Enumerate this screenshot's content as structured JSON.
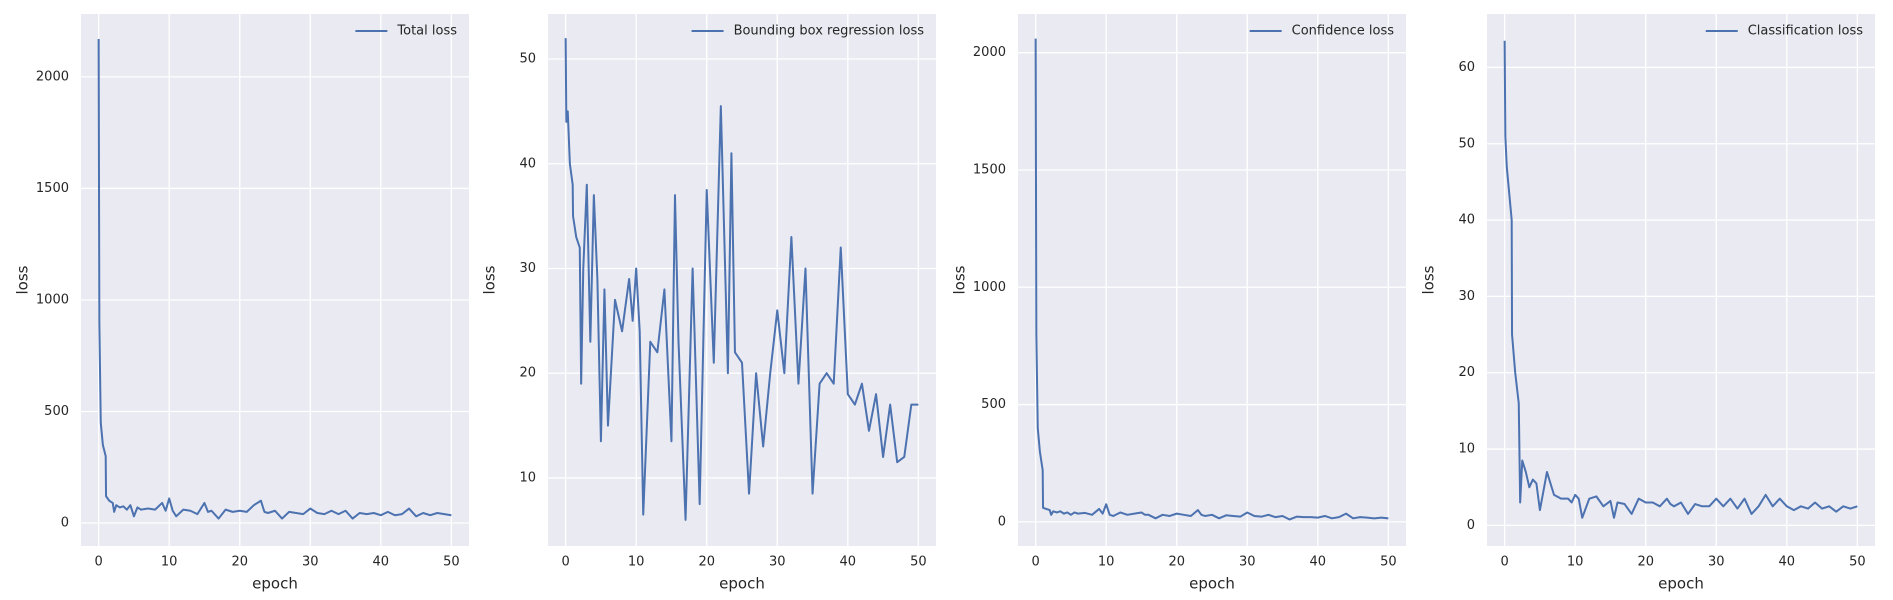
{
  "chart_data": [
    {
      "type": "line",
      "xlabel": "epoch",
      "ylabel": "loss",
      "legend": "upper right",
      "grid": true,
      "xlim": [
        -2.5,
        52.5
      ],
      "ylim": [
        -103,
        2282
      ],
      "xticks": [
        0,
        10,
        20,
        30,
        40,
        50
      ],
      "yticks": [
        0,
        500,
        1000,
        1500,
        2000
      ],
      "x": [
        0,
        0.1,
        0.3,
        0.6,
        1,
        1.05,
        1.5,
        2,
        2.2,
        2.5,
        3,
        3.5,
        4,
        4.5,
        5,
        5.5,
        6,
        7,
        8,
        9,
        9.5,
        10,
        10.5,
        11,
        12,
        13,
        14,
        15,
        15.5,
        16,
        17,
        18,
        19,
        20,
        21,
        22,
        23,
        23.5,
        24,
        25,
        26,
        27,
        28,
        29,
        30,
        31,
        32,
        33,
        34,
        35,
        36,
        37,
        38,
        39,
        40,
        41,
        42,
        43,
        44,
        45,
        46,
        47,
        48,
        49,
        50
      ],
      "series": [
        {
          "name": "Total loss",
          "color": "#4c72b0",
          "values": [
            2170,
            900,
            450,
            350,
            300,
            120,
            100,
            90,
            50,
            80,
            70,
            75,
            60,
            80,
            30,
            70,
            60,
            65,
            60,
            90,
            55,
            110,
            55,
            30,
            60,
            55,
            40,
            90,
            50,
            55,
            20,
            60,
            50,
            55,
            50,
            80,
            100,
            50,
            45,
            55,
            20,
            50,
            45,
            40,
            65,
            45,
            40,
            55,
            40,
            55,
            20,
            45,
            40,
            45,
            35,
            50,
            35,
            40,
            65,
            30,
            45,
            35,
            45,
            40,
            35
          ]
        }
      ]
    },
    {
      "type": "line",
      "xlabel": "epoch",
      "ylabel": "loss",
      "legend": "upper right",
      "grid": true,
      "xlim": [
        -2.5,
        52.5
      ],
      "ylim": [
        3.5,
        54.3
      ],
      "xticks": [
        0,
        10,
        20,
        30,
        40,
        50
      ],
      "yticks": [
        10,
        20,
        30,
        40,
        50
      ],
      "x": [
        0,
        0.1,
        0.3,
        0.6,
        1,
        1.05,
        1.5,
        2,
        2.2,
        2.5,
        3,
        3.5,
        4,
        4.5,
        5,
        5.5,
        6,
        7,
        8,
        9,
        9.5,
        10,
        10.5,
        11,
        12,
        13,
        14,
        15,
        15.5,
        16,
        17,
        18,
        19,
        20,
        21,
        22,
        23,
        23.5,
        24,
        25,
        26,
        27,
        28,
        29,
        30,
        31,
        32,
        33,
        34,
        35,
        36,
        37,
        38,
        39,
        40,
        41,
        42,
        43,
        44,
        45,
        46,
        47,
        48,
        49,
        50
      ],
      "series": [
        {
          "name": "Bounding box regression loss",
          "color": "#4c72b0",
          "values": [
            52,
            44,
            45,
            40,
            38,
            35,
            33,
            32,
            19,
            30,
            38,
            23,
            37,
            29,
            13.5,
            28,
            15,
            27,
            24,
            29,
            25,
            30,
            24,
            6.5,
            23,
            22,
            28,
            13.5,
            37,
            23,
            6,
            30,
            7.5,
            37.5,
            21,
            45.5,
            20,
            41,
            22,
            21,
            8.5,
            20,
            13,
            20,
            26,
            20,
            33,
            19,
            30,
            8.5,
            19,
            20,
            19,
            32,
            18,
            17,
            19,
            14.5,
            18,
            12,
            17,
            11.5,
            12,
            17,
            17
          ]
        }
      ]
    },
    {
      "type": "line",
      "xlabel": "epoch",
      "ylabel": "loss",
      "legend": "upper right",
      "grid": true,
      "xlim": [
        -2.5,
        52.5
      ],
      "ylim": [
        -103,
        2165
      ],
      "xticks": [
        0,
        10,
        20,
        30,
        40,
        50
      ],
      "yticks": [
        0,
        500,
        1000,
        1500,
        2000
      ],
      "x": [
        0,
        0.1,
        0.3,
        0.6,
        1,
        1.05,
        1.5,
        2,
        2.2,
        2.5,
        3,
        3.5,
        4,
        4.5,
        5,
        5.5,
        6,
        7,
        8,
        9,
        9.5,
        10,
        10.5,
        11,
        12,
        13,
        14,
        15,
        15.5,
        16,
        17,
        18,
        19,
        20,
        21,
        22,
        23,
        23.5,
        24,
        25,
        26,
        27,
        28,
        29,
        30,
        31,
        32,
        33,
        34,
        35,
        36,
        37,
        38,
        39,
        40,
        41,
        42,
        43,
        44,
        45,
        46,
        47,
        48,
        49,
        50
      ],
      "series": [
        {
          "name": "Confidence loss",
          "color": "#4c72b0",
          "values": [
            2060,
            800,
            400,
            300,
            220,
            60,
            55,
            50,
            30,
            45,
            40,
            45,
            35,
            40,
            30,
            40,
            35,
            38,
            30,
            55,
            35,
            75,
            30,
            25,
            40,
            30,
            35,
            40,
            30,
            30,
            15,
            30,
            25,
            35,
            30,
            25,
            50,
            30,
            25,
            30,
            15,
            28,
            25,
            22,
            40,
            25,
            22,
            30,
            20,
            25,
            10,
            22,
            20,
            20,
            18,
            25,
            15,
            20,
            35,
            15,
            20,
            18,
            15,
            18,
            15
          ]
        }
      ]
    },
    {
      "type": "line",
      "xlabel": "epoch",
      "ylabel": "loss",
      "legend": "upper right",
      "grid": true,
      "xlim": [
        -2.5,
        52.5
      ],
      "ylim": [
        -2.7,
        67
      ],
      "xticks": [
        0,
        10,
        20,
        30,
        40,
        50
      ],
      "yticks": [
        0,
        10,
        20,
        30,
        40,
        50,
        60
      ],
      "x": [
        0,
        0.1,
        0.3,
        0.6,
        1,
        1.05,
        1.5,
        2,
        2.2,
        2.5,
        3,
        3.5,
        4,
        4.5,
        5,
        5.5,
        6,
        7,
        8,
        9,
        9.5,
        10,
        10.5,
        11,
        12,
        13,
        14,
        15,
        15.5,
        16,
        17,
        18,
        19,
        20,
        21,
        22,
        23,
        23.5,
        24,
        25,
        26,
        27,
        28,
        29,
        30,
        31,
        32,
        33,
        34,
        35,
        36,
        37,
        38,
        39,
        40,
        41,
        42,
        43,
        44,
        45,
        46,
        47,
        48,
        49,
        50
      ],
      "series": [
        {
          "name": "Classification loss",
          "color": "#4c72b0",
          "values": [
            63.5,
            51,
            47,
            44,
            40,
            25,
            20,
            16,
            3,
            8.5,
            7,
            5,
            6,
            5.5,
            2,
            4.5,
            7,
            4,
            3.5,
            3.5,
            3,
            4,
            3.5,
            1,
            3.5,
            3.8,
            2.5,
            3.2,
            1,
            3,
            2.8,
            1.5,
            3.5,
            3,
            3,
            2.5,
            3.5,
            2.8,
            2.5,
            3,
            1.5,
            2.8,
            2.5,
            2.5,
            3.5,
            2.5,
            3.5,
            2.2,
            3.5,
            1.5,
            2.5,
            4,
            2.5,
            3.5,
            2.5,
            2,
            2.5,
            2.2,
            3,
            2.2,
            2.5,
            1.8,
            2.5,
            2.2,
            2.5
          ]
        }
      ]
    }
  ]
}
